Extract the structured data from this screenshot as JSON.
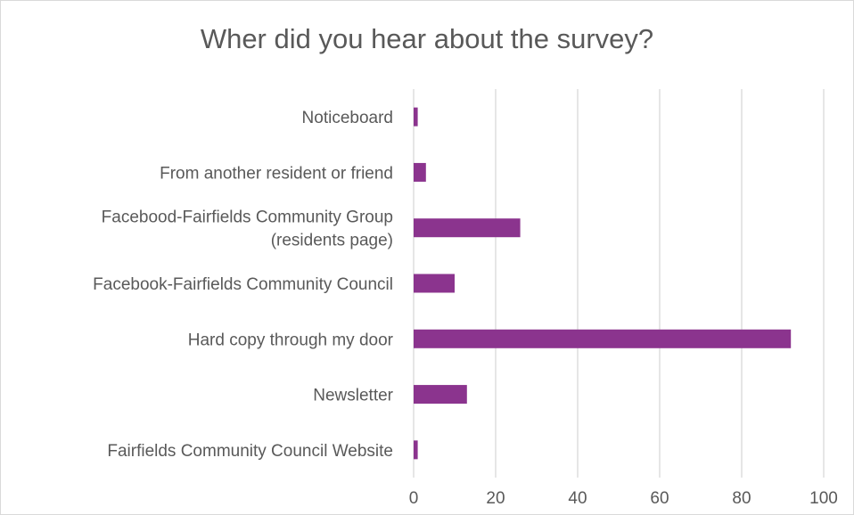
{
  "chart_data": {
    "type": "bar",
    "orientation": "horizontal",
    "title": "Wher did you hear about the survey?",
    "categories": [
      "Noticeboard",
      "From another resident or friend",
      "Facebood-Fairfields Community Group (residents page)",
      "Facebook-Fairfields Community Council",
      "Hard copy through my door",
      "Newsletter",
      "Fairfields Community Council Website"
    ],
    "category_lines": [
      [
        "Noticeboard"
      ],
      [
        "From another resident or friend"
      ],
      [
        "Facebood-Fairfields Community Group",
        "(residents page)"
      ],
      [
        "Facebook-Fairfields Community Council"
      ],
      [
        "Hard copy through my door"
      ],
      [
        "Newsletter"
      ],
      [
        "Fairfields Community Council Website"
      ]
    ],
    "values": [
      1,
      3,
      26,
      10,
      92,
      13,
      1
    ],
    "xlim": [
      0,
      100
    ],
    "xticks": [
      0,
      20,
      40,
      60,
      80,
      100
    ],
    "grid": true,
    "bar_color": "#8b348e",
    "grid_color": "#d9d9d9",
    "xlabel": "",
    "ylabel": ""
  }
}
